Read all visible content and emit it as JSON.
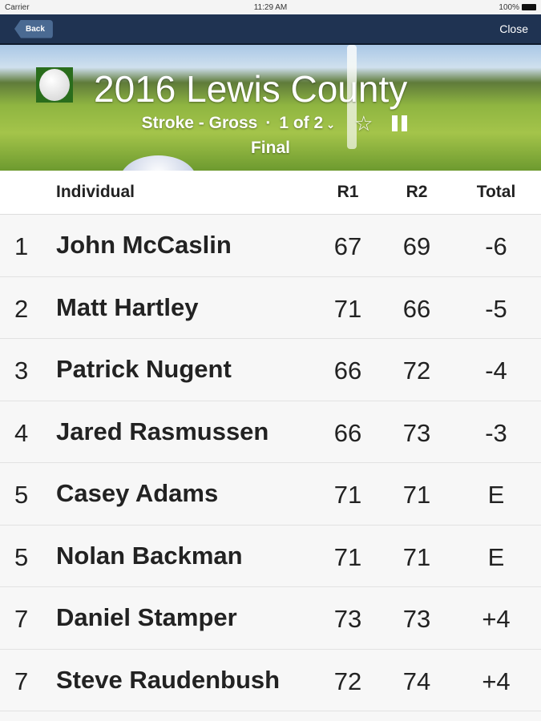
{
  "status_bar": {
    "carrier": "Carrier",
    "time": "11:29 AM",
    "battery": "100%"
  },
  "nav": {
    "back_label": "Back",
    "close_label": "Close"
  },
  "header": {
    "title": "2016 Lewis County",
    "format": "Stroke - Gross",
    "separator": "·",
    "round_selector": "1 of 2",
    "status": "Final"
  },
  "table": {
    "columns": [
      "Individual",
      "R1",
      "R2",
      "Total"
    ],
    "rows": [
      {
        "pos": "1",
        "name": "John McCaslin",
        "r1": "67",
        "r2": "69",
        "total": "-6"
      },
      {
        "pos": "2",
        "name": "Matt Hartley",
        "r1": "71",
        "r2": "66",
        "total": "-5"
      },
      {
        "pos": "3",
        "name": "Patrick Nugent",
        "r1": "66",
        "r2": "72",
        "total": "-4"
      },
      {
        "pos": "4",
        "name": "Jared Rasmussen",
        "r1": "66",
        "r2": "73",
        "total": "-3"
      },
      {
        "pos": "5",
        "name": "Casey Adams",
        "r1": "71",
        "r2": "71",
        "total": "E"
      },
      {
        "pos": "5",
        "name": "Nolan Backman",
        "r1": "71",
        "r2": "71",
        "total": "E"
      },
      {
        "pos": "7",
        "name": "Daniel Stamper",
        "r1": "73",
        "r2": "73",
        "total": "+4"
      },
      {
        "pos": "7",
        "name": "Steve Raudenbush",
        "r1": "72",
        "r2": "74",
        "total": "+4"
      }
    ]
  },
  "colors": {
    "nav_bg": "#1f3352",
    "back_button": "#4a6a92"
  }
}
